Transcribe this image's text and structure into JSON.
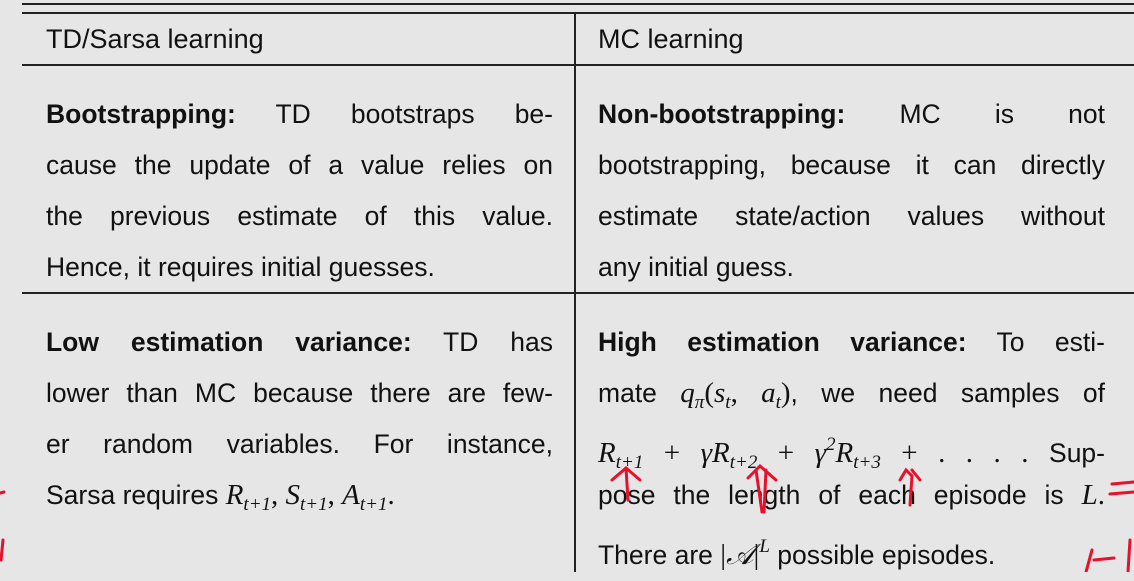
{
  "header": {
    "left": "TD/Sarsa learning",
    "right": "MC learning"
  },
  "rows": [
    {
      "left": [
        [
          {
            "b": "Bootstrapping:"
          },
          {
            "t": " TD bootstraps be-"
          }
        ],
        [
          {
            "t": "cause the update of a value relies on"
          }
        ],
        [
          {
            "t": "the previous estimate of this value."
          }
        ],
        [
          {
            "t": "Hence, it requires initial guesses."
          }
        ]
      ],
      "right": [
        [
          {
            "b": "Non-bootstrapping:"
          },
          {
            "t": " MC is not"
          }
        ],
        [
          {
            "t": "bootstrapping, because it can directly"
          }
        ],
        [
          {
            "t": "estimate state/action values without"
          }
        ],
        [
          {
            "t": "any initial guess."
          }
        ]
      ]
    },
    {
      "left": [
        [
          {
            "b": "Low estimation variance:"
          },
          {
            "t": " TD has"
          }
        ],
        [
          {
            "t": "lower than MC because there are few-"
          }
        ],
        [
          {
            "t": "er random variables.  For instance,"
          }
        ],
        [
          {
            "t": "Sarsa requires "
          },
          {
            "m": "R",
            "sub": "t+1"
          },
          {
            "r": ", "
          },
          {
            "m": "S",
            "sub": "t+1"
          },
          {
            "r": ", "
          },
          {
            "m": "A",
            "sub": "t+1"
          },
          {
            "r": "."
          }
        ]
      ],
      "right": [
        [
          {
            "b": "High estimation variance:"
          },
          {
            "t": " To esti-"
          }
        ],
        [
          {
            "t": "mate "
          },
          {
            "m": "q",
            "sub": "π"
          },
          {
            "r": "("
          },
          {
            "m": "s",
            "sub": "t"
          },
          {
            "r": ", "
          },
          {
            "m": "a",
            "sub": "t"
          },
          {
            "r": ")"
          },
          {
            "t": ", we need samples of"
          }
        ],
        [
          {
            "m": "R",
            "sub": "t+1"
          },
          {
            "r": " + "
          },
          {
            "m": "γR",
            "sub": "t+2"
          },
          {
            "r": " + "
          },
          {
            "m": "γ",
            "sup": "2"
          },
          {
            "m": "R",
            "sub": "t+3"
          },
          {
            "r": " + . . . ."
          },
          {
            "t": " Sup-"
          }
        ],
        [
          {
            "t": "pose the length of each episode is "
          },
          {
            "m": "L"
          },
          {
            "r": "."
          }
        ],
        [
          {
            "t": "There are "
          },
          {
            "r": "|"
          },
          {
            "m": "𝒜"
          },
          {
            "r": "|"
          },
          {
            "m": "",
            "sup": "L"
          },
          {
            "t": " possible episodes."
          }
        ]
      ]
    }
  ],
  "colors": {
    "background": "#e6e6e6",
    "rule": "#222222",
    "annotation": "#e8102a"
  }
}
